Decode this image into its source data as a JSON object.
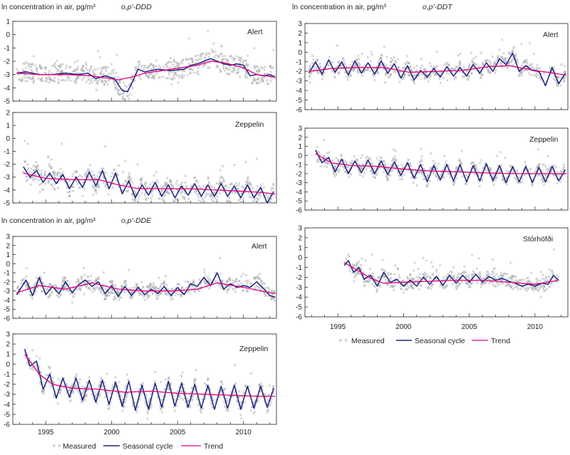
{
  "chart_data": [
    {
      "type": "line",
      "title": "ln concentration in air, pg/m³",
      "compound": "o,p'-DDD",
      "location": "Alert",
      "xlim": [
        1992.5,
        2012.5
      ],
      "ylim": [
        -5,
        1
      ],
      "yticks": [
        "1",
        "0",
        "-1",
        "-2",
        "-3",
        "-4",
        "-5"
      ],
      "series": [
        {
          "name": "Seasonal cycle",
          "x": [
            1992.8,
            1993.5,
            1994.5,
            1995.5,
            1996.5,
            1997.5,
            1998.2,
            1998.8,
            1999.5,
            2000.2,
            2000.8,
            2001.2,
            2001.6,
            2002.0,
            2002.5,
            2003.5,
            2004.5,
            2005.5,
            2006.0,
            2006.5,
            2007.0,
            2007.5,
            2008.0,
            2008.5,
            2009.0,
            2009.5,
            2010.0,
            2010.5,
            2011.0,
            2011.5,
            2012.0,
            2012.4
          ],
          "y": [
            -2.9,
            -2.8,
            -3.0,
            -3.0,
            -2.9,
            -3.0,
            -2.9,
            -3.3,
            -3.1,
            -3.3,
            -4.2,
            -4.3,
            -3.5,
            -2.6,
            -2.8,
            -2.6,
            -2.7,
            -2.6,
            -2.3,
            -2.2,
            -2.0,
            -1.8,
            -2.0,
            -2.2,
            -2.3,
            -2.2,
            -2.3,
            -3.1,
            -3.0,
            -3.1,
            -3.0,
            -3.2
          ]
        },
        {
          "name": "Trend",
          "x": [
            1992.8,
            1994.5,
            1996.5,
            1998.5,
            2000.5,
            2001.5,
            2002.5,
            2004.5,
            2006.5,
            2007.5,
            2008.5,
            2010.0,
            2011.0,
            2012.4
          ],
          "y": [
            -2.9,
            -3.0,
            -3.0,
            -3.1,
            -3.4,
            -3.2,
            -2.9,
            -2.6,
            -2.3,
            -2.0,
            -2.1,
            -2.5,
            -3.0,
            -3.2
          ]
        }
      ]
    },
    {
      "type": "line",
      "location": "Zeppelin",
      "xlim": [
        1992.5,
        2012.5
      ],
      "ylim": [
        -5,
        2
      ],
      "yticks": [
        "2",
        "1",
        "0",
        "-1",
        "-2",
        "-3",
        "-4",
        "-5"
      ],
      "series": [
        {
          "name": "Seasonal cycle",
          "x": [
            1993.3,
            1993.8,
            1994.3,
            1994.8,
            1995.3,
            1995.8,
            1996.3,
            1996.8,
            1997.3,
            1997.8,
            1998.3,
            1998.8,
            1999.3,
            1999.8,
            2000.3,
            2000.8,
            2001.3,
            2001.8,
            2002.3,
            2002.8,
            2003.3,
            2003.8,
            2004.3,
            2004.8,
            2005.3,
            2005.8,
            2006.3,
            2006.8,
            2007.3,
            2007.8,
            2008.3,
            2008.8,
            2009.3,
            2009.8,
            2010.3,
            2010.8,
            2011.3,
            2011.8,
            2012.3
          ],
          "y": [
            -2.2,
            -3.0,
            -2.5,
            -3.4,
            -2.7,
            -3.5,
            -2.8,
            -3.9,
            -3.0,
            -3.8,
            -2.6,
            -3.7,
            -2.5,
            -3.9,
            -2.7,
            -4.3,
            -3.3,
            -4.6,
            -3.6,
            -4.4,
            -3.4,
            -4.5,
            -3.6,
            -4.6,
            -3.7,
            -4.4,
            -3.5,
            -4.5,
            -3.6,
            -4.5,
            -3.5,
            -4.5,
            -3.7,
            -4.6,
            -3.6,
            -4.6,
            -3.8,
            -5.0,
            -4.1
          ]
        },
        {
          "name": "Trend",
          "x": [
            1993.3,
            1995.0,
            1997.0,
            1999.0,
            2000.5,
            2002.0,
            2004.0,
            2006.0,
            2008.0,
            2010.0,
            2011.5,
            2012.4
          ],
          "y": [
            -2.7,
            -3.1,
            -3.2,
            -3.2,
            -3.6,
            -3.9,
            -3.9,
            -3.9,
            -4.0,
            -4.1,
            -4.2,
            -4.3
          ]
        }
      ]
    },
    {
      "type": "line",
      "title": "ln concentration in air, pg/m³",
      "compound": "o,p'-DDE",
      "location": "Alert",
      "xlim": [
        1992.5,
        2012.5
      ],
      "ylim": [
        -6,
        3
      ],
      "yticks": [
        "3",
        "2",
        "1",
        "0",
        "-1",
        "-2",
        "-3",
        "-4",
        "-5",
        "-6"
      ],
      "series": [
        {
          "name": "Seasonal cycle",
          "x": [
            1992.8,
            1993.5,
            1994.0,
            1994.5,
            1995.0,
            1995.5,
            1996.0,
            1996.5,
            1997.0,
            1997.5,
            1998.0,
            1998.5,
            1999.0,
            1999.5,
            2000.0,
            2000.5,
            2001.0,
            2001.5,
            2002.0,
            2002.5,
            2003.0,
            2003.5,
            2004.0,
            2004.5,
            2005.0,
            2005.5,
            2006.0,
            2006.5,
            2007.0,
            2007.5,
            2008.0,
            2008.5,
            2009.0,
            2009.5,
            2010.0,
            2010.5,
            2011.0,
            2011.5,
            2012.0,
            2012.4
          ],
          "y": [
            -3.4,
            -1.8,
            -3.5,
            -1.5,
            -3.4,
            -2.5,
            -3.3,
            -2.0,
            -3.2,
            -2.3,
            -1.8,
            -2.5,
            -2.0,
            -3.3,
            -2.4,
            -3.6,
            -2.5,
            -3.5,
            -2.6,
            -3.4,
            -2.8,
            -3.3,
            -2.5,
            -3.5,
            -2.6,
            -3.4,
            -2.2,
            -2.5,
            -1.5,
            -2.4,
            -1.0,
            -2.8,
            -2.2,
            -2.6,
            -2.4,
            -2.6,
            -2.0,
            -2.7,
            -3.5,
            -3.7
          ]
        },
        {
          "name": "Trend",
          "x": [
            1992.8,
            1994.5,
            1996.5,
            1998.5,
            2000.5,
            2002.5,
            2004.5,
            2006.5,
            2008.0,
            2010.0,
            2012.4
          ],
          "y": [
            -3.2,
            -2.4,
            -2.8,
            -2.1,
            -2.8,
            -3.0,
            -3.0,
            -2.8,
            -2.1,
            -2.6,
            -3.3
          ]
        }
      ]
    },
    {
      "type": "line",
      "location": "Zeppelin",
      "xlim": [
        1992.5,
        2012.5
      ],
      "ylim": [
        -6,
        3
      ],
      "yticks": [
        "3",
        "2",
        "1",
        "0",
        "-1",
        "-2",
        "-3",
        "-4",
        "-5",
        "-6"
      ],
      "series": [
        {
          "name": "Seasonal cycle",
          "x": [
            1993.4,
            1993.8,
            1994.3,
            1994.8,
            1995.3,
            1995.8,
            1996.3,
            1996.8,
            1997.3,
            1997.8,
            1998.3,
            1998.8,
            1999.3,
            1999.8,
            2000.3,
            2000.8,
            2001.3,
            2001.8,
            2002.3,
            2002.8,
            2003.3,
            2003.8,
            2004.3,
            2004.8,
            2005.3,
            2005.8,
            2006.3,
            2006.8,
            2007.3,
            2007.8,
            2008.3,
            2008.8,
            2009.3,
            2009.8,
            2010.3,
            2010.8,
            2011.3,
            2011.8,
            2012.3
          ],
          "y": [
            1.5,
            -0.2,
            0.3,
            -2.5,
            -1.0,
            -3.4,
            -1.4,
            -3.3,
            -1.4,
            -3.6,
            -1.6,
            -3.8,
            -1.6,
            -4.0,
            -1.8,
            -4.2,
            -1.7,
            -4.6,
            -2.1,
            -4.5,
            -1.9,
            -4.3,
            -1.7,
            -4.2,
            -1.9,
            -4.3,
            -2.0,
            -4.4,
            -2.1,
            -4.5,
            -2.2,
            -4.4,
            -2.1,
            -4.5,
            -2.2,
            -4.4,
            -2.2,
            -4.3,
            -2.4
          ]
        },
        {
          "name": "Trend",
          "x": [
            1993.4,
            1994.5,
            1995.5,
            1997.0,
            1999.0,
            2001.0,
            2003.0,
            2005.0,
            2007.0,
            2009.0,
            2011.0,
            2012.4
          ],
          "y": [
            1.0,
            -1.0,
            -2.0,
            -2.4,
            -2.5,
            -2.8,
            -2.7,
            -2.9,
            -3.0,
            -3.1,
            -3.2,
            -3.2
          ]
        }
      ]
    },
    {
      "type": "line",
      "title": "ln concentration in air, pg/m³",
      "compound": "o,p'-DDT",
      "location": "Alert",
      "xlim": [
        1992.5,
        2012.5
      ],
      "ylim": [
        -6,
        3
      ],
      "yticks": [
        "3",
        "2",
        "1",
        "0",
        "-1",
        "-2",
        "-3",
        "-4",
        "-5",
        "-6"
      ],
      "series": [
        {
          "name": "Seasonal cycle",
          "x": [
            1992.8,
            1993.3,
            1993.8,
            1994.3,
            1994.8,
            1995.3,
            1995.8,
            1996.3,
            1996.8,
            1997.3,
            1997.8,
            1998.3,
            1998.8,
            1999.3,
            1999.8,
            2000.3,
            2000.8,
            2001.3,
            2001.8,
            2002.3,
            2002.8,
            2003.3,
            2003.8,
            2004.3,
            2004.8,
            2005.3,
            2005.8,
            2006.3,
            2006.8,
            2007.3,
            2007.8,
            2008.3,
            2008.8,
            2009.3,
            2009.8,
            2010.3,
            2010.8,
            2011.3,
            2011.8,
            2012.3
          ],
          "y": [
            -2.2,
            -1.0,
            -2.3,
            -0.8,
            -2.1,
            -1.0,
            -2.4,
            -0.9,
            -2.2,
            -1.1,
            -2.3,
            -0.9,
            -2.2,
            -1.2,
            -2.7,
            -1.4,
            -2.9,
            -1.9,
            -2.6,
            -1.7,
            -2.6,
            -1.5,
            -2.5,
            -1.6,
            -2.5,
            -1.3,
            -2.2,
            -1.1,
            -2.0,
            -0.7,
            -1.3,
            -0.1,
            -2.0,
            -1.4,
            -1.9,
            -2.0,
            -3.5,
            -1.6,
            -3.3,
            -2.2
          ]
        },
        {
          "name": "Trend",
          "x": [
            1992.8,
            1994.5,
            1996.5,
            1998.5,
            2000.5,
            2002.5,
            2004.5,
            2006.5,
            2008.0,
            2010.0,
            2012.4
          ],
          "y": [
            -2.0,
            -1.7,
            -1.6,
            -1.6,
            -2.1,
            -2.0,
            -1.9,
            -1.5,
            -1.4,
            -1.9,
            -2.4
          ]
        }
      ]
    },
    {
      "type": "line",
      "location": "Zeppelin",
      "xlim": [
        1992.5,
        2012.5
      ],
      "ylim": [
        -6,
        3
      ],
      "yticks": [
        "3",
        "2",
        "1",
        "0",
        "-1",
        "-2",
        "-3",
        "-4",
        "-5",
        "-6"
      ],
      "series": [
        {
          "name": "Seasonal cycle",
          "x": [
            1993.3,
            1993.8,
            1994.3,
            1994.8,
            1995.3,
            1995.8,
            1996.3,
            1996.8,
            1997.3,
            1997.8,
            1998.3,
            1998.8,
            1999.3,
            1999.8,
            2000.3,
            2000.8,
            2001.3,
            2001.8,
            2002.3,
            2002.8,
            2003.3,
            2003.8,
            2004.3,
            2004.8,
            2005.3,
            2005.8,
            2006.3,
            2006.8,
            2007.3,
            2007.8,
            2008.3,
            2008.8,
            2009.3,
            2009.8,
            2010.3,
            2010.8,
            2011.3,
            2011.8,
            2012.3
          ],
          "y": [
            0.6,
            -0.8,
            -0.2,
            -1.8,
            -0.4,
            -2.0,
            -0.6,
            -1.9,
            -0.5,
            -2.0,
            -0.6,
            -2.1,
            -0.7,
            -2.2,
            -0.8,
            -2.5,
            -1.0,
            -2.9,
            -1.1,
            -2.7,
            -1.0,
            -2.8,
            -1.0,
            -2.9,
            -1.1,
            -2.8,
            -0.9,
            -2.8,
            -1.1,
            -3.0,
            -1.2,
            -2.9,
            -1.2,
            -3.0,
            -1.3,
            -2.9,
            -1.2,
            -2.8,
            -1.6
          ]
        },
        {
          "name": "Trend",
          "x": [
            1993.3,
            1994.5,
            1996.0,
            1998.0,
            2000.0,
            2002.0,
            2004.0,
            2006.0,
            2008.0,
            2010.0,
            2012.4
          ],
          "y": [
            0.2,
            -0.8,
            -1.1,
            -1.2,
            -1.5,
            -1.7,
            -1.8,
            -1.9,
            -2.0,
            -2.0,
            -2.0
          ]
        }
      ]
    },
    {
      "type": "line",
      "location": "Stórhöfði",
      "xlim": [
        1992.5,
        2012.5
      ],
      "ylim": [
        -6,
        3
      ],
      "yticks": [
        "3",
        "2",
        "1",
        "0",
        "-1",
        "-2",
        "-3",
        "-4",
        "-5",
        "-6"
      ],
      "xticks": [
        "1995",
        "2000",
        "2005",
        "2010"
      ],
      "series": [
        {
          "name": "Seasonal cycle",
          "x": [
            1995.5,
            1995.8,
            1996.2,
            1996.6,
            1997.0,
            1997.5,
            1998.0,
            1998.5,
            1999.0,
            1999.5,
            2000.0,
            2000.5,
            2001.0,
            2001.5,
            2002.0,
            2002.5,
            2003.0,
            2003.5,
            2004.0,
            2004.5,
            2005.0,
            2005.5,
            2006.0,
            2006.5,
            2007.0,
            2007.5,
            2008.0,
            2008.5,
            2009.0,
            2009.5,
            2010.0,
            2010.5,
            2011.0,
            2011.4,
            2011.8
          ],
          "y": [
            -0.8,
            -0.3,
            -1.5,
            -1.0,
            -2.2,
            -1.8,
            -2.9,
            -1.5,
            -2.5,
            -2.2,
            -2.9,
            -2.3,
            -2.9,
            -2.0,
            -2.7,
            -1.9,
            -2.8,
            -1.8,
            -2.6,
            -1.8,
            -2.5,
            -1.7,
            -2.5,
            -1.9,
            -2.3,
            -2.1,
            -2.4,
            -2.6,
            -2.9,
            -2.7,
            -2.9,
            -2.6,
            -2.7,
            -1.8,
            -2.3
          ]
        },
        {
          "name": "Trend",
          "x": [
            1995.5,
            1996.5,
            1997.5,
            1998.5,
            2000.0,
            2002.0,
            2004.0,
            2006.0,
            2008.0,
            2010.0,
            2011.8
          ],
          "y": [
            -0.5,
            -1.3,
            -2.1,
            -2.6,
            -2.5,
            -2.4,
            -2.3,
            -2.3,
            -2.5,
            -2.7,
            -2.3
          ]
        }
      ]
    }
  ],
  "panels_text": {
    "title": "ln concentration in air, pg/m³",
    "compound_ddd": "o,p'-DDD",
    "compound_dde": "o,p'-DDE",
    "compound_ddt": "o,p'-DDT",
    "alert": "Alert",
    "zeppelin": "Zeppelin",
    "storhofdi": "Stórhöfði"
  },
  "x_axis": {
    "ticks": [
      "1995",
      "2000",
      "2005",
      "2010"
    ]
  },
  "legend": {
    "measured": "Measured",
    "seasonal": "Seasonal cycle",
    "trend": "Trend"
  },
  "colors": {
    "seasonal": "#1a237e",
    "trend": "#e6007e",
    "measured": "#a7a9ac",
    "frame": "#231f20"
  }
}
